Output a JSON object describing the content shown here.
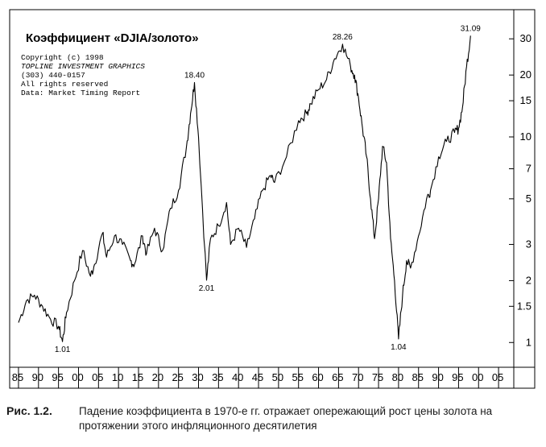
{
  "chart_data": {
    "type": "line",
    "title": "Коэффициент «DJIA/золото»",
    "notes": [
      "Copyright (c) 1998",
      "TOPLINE INVESTMENT GRAPHICS",
      "(303) 440-0157",
      "All rights reserved",
      "Data: Market Timing Report"
    ],
    "y_scale": "log",
    "ylim": [
      0.8,
      36
    ],
    "xlim": [
      1884,
      2008
    ],
    "y_ticks": [
      1,
      1.5,
      2,
      3,
      5,
      7,
      10,
      15,
      20,
      30
    ],
    "y_tick_labels": [
      "1",
      "1.5",
      "2",
      "3",
      "5",
      "7",
      "10",
      "15",
      "20",
      "30"
    ],
    "x_ticks": [
      1885,
      1890,
      1895,
      1900,
      1905,
      1910,
      1915,
      1920,
      1925,
      1930,
      1935,
      1940,
      1945,
      1950,
      1955,
      1960,
      1965,
      1970,
      1975,
      1980,
      1985,
      1990,
      1995,
      2000,
      2005
    ],
    "x_tick_labels": [
      "85",
      "90",
      "95",
      "00",
      "05",
      "10",
      "15",
      "20",
      "25",
      "30",
      "35",
      "40",
      "45",
      "50",
      "55",
      "60",
      "65",
      "70",
      "75",
      "80",
      "85",
      "90",
      "95",
      "00",
      "05"
    ],
    "series": [
      {
        "x": [
          1885,
          1887,
          1889,
          1891,
          1893,
          1895,
          1896,
          1897,
          1899,
          1901,
          1903,
          1904,
          1906,
          1907,
          1909,
          1911,
          1913,
          1914,
          1916,
          1917,
          1919,
          1921,
          1923,
          1925,
          1927,
          1928,
          1929,
          1930,
          1932,
          1933,
          1935,
          1937,
          1938,
          1940,
          1942,
          1944,
          1946,
          1948,
          1949,
          1952,
          1955,
          1957,
          1958,
          1960,
          1962,
          1964,
          1966,
          1968,
          1969,
          1970,
          1971,
          1972,
          1973,
          1974,
          1975,
          1976,
          1977,
          1978,
          1979,
          1980,
          1981,
          1982,
          1983,
          1985,
          1987,
          1988,
          1990,
          1992,
          1994,
          1995,
          1996,
          1997,
          1998
        ],
        "y": [
          1.25,
          1.6,
          1.7,
          1.5,
          1.3,
          1.2,
          1.01,
          1.4,
          2.0,
          2.8,
          2.1,
          2.4,
          3.4,
          2.6,
          3.3,
          3.0,
          2.5,
          2.4,
          3.3,
          2.7,
          3.6,
          2.8,
          4.5,
          5.5,
          9.0,
          13.0,
          18.4,
          10.0,
          2.01,
          3.2,
          3.7,
          4.8,
          3.0,
          3.6,
          2.9,
          4.0,
          5.5,
          6.5,
          6.0,
          8.0,
          12.0,
          13.0,
          14.5,
          17.0,
          19.0,
          24.0,
          28.26,
          22.0,
          20.0,
          15.5,
          11.0,
          8.0,
          5.0,
          3.2,
          5.0,
          9.0,
          7.5,
          3.2,
          2.0,
          1.04,
          1.7,
          2.5,
          2.3,
          3.3,
          5.0,
          5.5,
          8.0,
          9.5,
          10.5,
          11.0,
          14.0,
          22.0,
          31.09
        ]
      }
    ],
    "annotations": [
      {
        "x": 1896,
        "y": 1.01,
        "text": "1.01"
      },
      {
        "x": 1929,
        "y": 18.4,
        "text": "18.40"
      },
      {
        "x": 1932,
        "y": 2.01,
        "text": "2.01"
      },
      {
        "x": 1966,
        "y": 28.26,
        "text": "28.26"
      },
      {
        "x": 1980,
        "y": 1.04,
        "text": "1.04"
      },
      {
        "x": 1998,
        "y": 31.09,
        "text": "31.09"
      }
    ]
  },
  "caption": {
    "label": "Рис. 1.2.",
    "text": "Падение коэффициента в 1970-е гг. отражает опережающий рост цены золота на протяжении этого инфляционного десятилетия"
  }
}
